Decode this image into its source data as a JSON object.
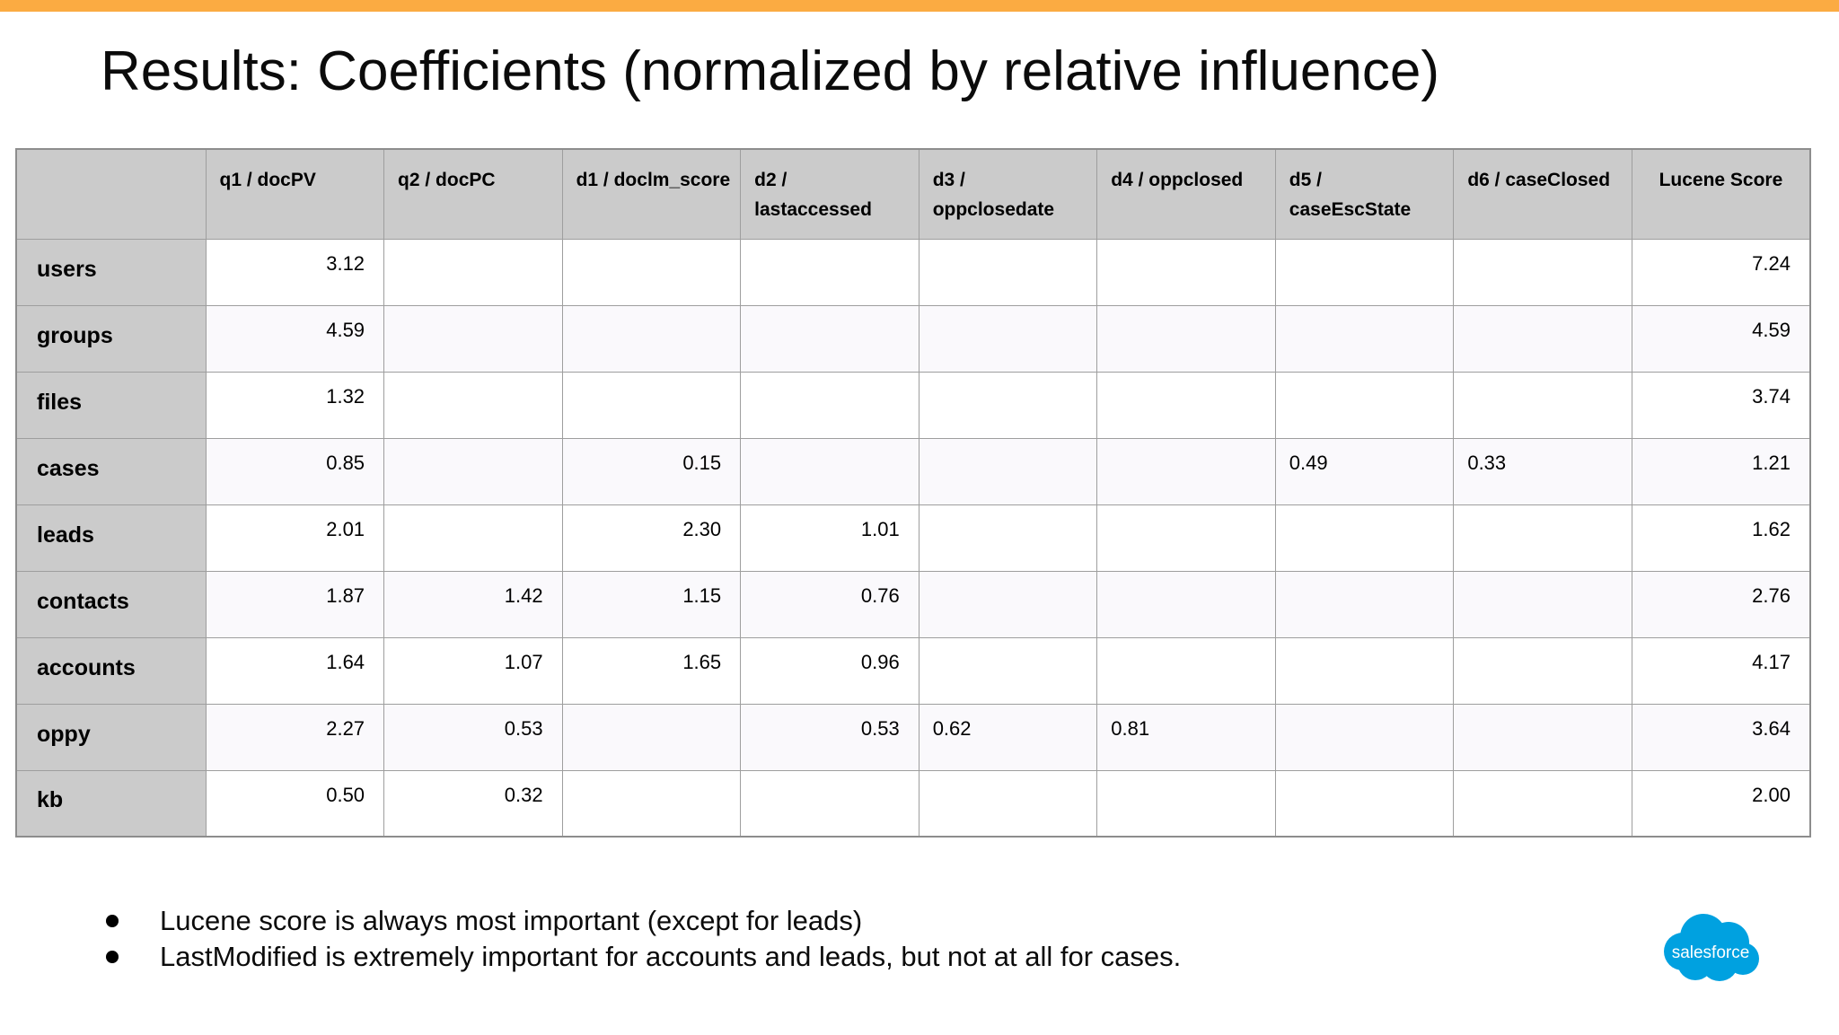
{
  "colors": {
    "accent_bar": "#FBAB42",
    "table_header_bg": "#CBCBCB",
    "row_stripe": "#FAF9FC",
    "grid_line": "#9E9E9E",
    "salesforce_blue": "#00A1E0"
  },
  "title": "Results: Coefficients (normalized by relative influence)",
  "table": {
    "corner_label": "",
    "columns": [
      "q1 / docPV",
      "q2 / docPC",
      "d1 / doclm_score",
      "d2 / lastaccessed",
      "d3 / oppclosedate",
      "d4 / oppclosed",
      "d5 / caseEscState",
      "d6 / caseClosed",
      "Lucene Score"
    ],
    "rows": [
      {
        "label": "users",
        "cells": [
          "3.12",
          "",
          "",
          "",
          "",
          "",
          "",
          "",
          "7.24"
        ]
      },
      {
        "label": "groups",
        "cells": [
          "4.59",
          "",
          "",
          "",
          "",
          "",
          "",
          "",
          "4.59"
        ]
      },
      {
        "label": "files",
        "cells": [
          "1.32",
          "",
          "",
          "",
          "",
          "",
          "",
          "",
          "3.74"
        ]
      },
      {
        "label": "cases",
        "cells": [
          "0.85",
          "",
          "0.15",
          "",
          "",
          "",
          "0.49",
          "0.33",
          "1.21"
        ]
      },
      {
        "label": "leads",
        "cells": [
          "2.01",
          "",
          "2.30",
          "1.01",
          "",
          "",
          "",
          "",
          "1.62"
        ]
      },
      {
        "label": "contacts",
        "cells": [
          "1.87",
          "1.42",
          "1.15",
          "0.76",
          "",
          "",
          "",
          "",
          "2.76"
        ]
      },
      {
        "label": "accounts",
        "cells": [
          "1.64",
          "1.07",
          "1.65",
          "0.96",
          "",
          "",
          "",
          "",
          "4.17"
        ]
      },
      {
        "label": "oppy",
        "cells": [
          "2.27",
          "0.53",
          "",
          "0.53",
          "0.62",
          "0.81",
          "",
          "",
          "3.64"
        ]
      },
      {
        "label": "kb",
        "cells": [
          "0.50",
          "0.32",
          "",
          "",
          "",
          "",
          "",
          "",
          "2.00"
        ]
      }
    ],
    "left_aligned_cells": [
      [
        3,
        6
      ],
      [
        3,
        7
      ],
      [
        7,
        4
      ],
      [
        7,
        5
      ]
    ]
  },
  "notes": {
    "items": [
      "Lucene score is always most important (except for leads)",
      "LastModified is extremely important for accounts and leads, but not at all for cases."
    ]
  },
  "logo": {
    "wordmark": "salesforce"
  }
}
